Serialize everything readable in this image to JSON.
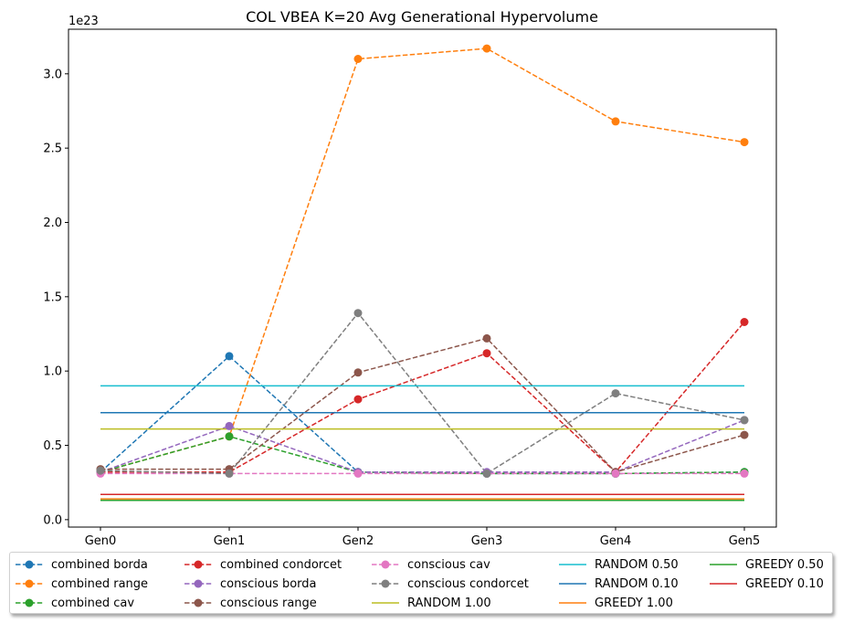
{
  "chart_data": {
    "type": "line",
    "title": "COL VBEA K=20 Avg Generational Hypervolume",
    "xlabel": "",
    "ylabel": "",
    "y_offset_label": "1e23",
    "categories": [
      "Gen0",
      "Gen1",
      "Gen2",
      "Gen3",
      "Gen4",
      "Gen5"
    ],
    "ylim": [
      -0.05,
      3.3
    ],
    "yticks": [
      0.0,
      0.5,
      1.0,
      1.5,
      2.0,
      2.5,
      3.0
    ],
    "ytick_labels": [
      "0.0",
      "0.5",
      "1.0",
      "1.5",
      "2.0",
      "2.5",
      "3.0"
    ],
    "legend_position": "below plot, 5 columns",
    "series": [
      {
        "name": "combined borda",
        "style": "dashed-marker",
        "color": "#1f77b4",
        "values": [
          0.32,
          1.1,
          0.32,
          0.31,
          0.31,
          0.32
        ]
      },
      {
        "name": "combined range",
        "style": "dashed-marker",
        "color": "#ff7f0e",
        "values": [
          0.32,
          0.56,
          3.1,
          3.17,
          2.68,
          2.54
        ]
      },
      {
        "name": "combined cav",
        "style": "dashed-marker",
        "color": "#2ca02c",
        "values": [
          0.32,
          0.56,
          0.32,
          0.31,
          0.31,
          0.32
        ]
      },
      {
        "name": "combined condorcet",
        "style": "dashed-marker",
        "color": "#d62728",
        "values": [
          0.32,
          0.32,
          0.81,
          1.12,
          0.32,
          1.33
        ]
      },
      {
        "name": "conscious borda",
        "style": "dashed-marker",
        "color": "#9467bd",
        "values": [
          0.32,
          0.63,
          0.32,
          0.32,
          0.32,
          0.67
        ]
      },
      {
        "name": "conscious range",
        "style": "dashed-marker",
        "color": "#8c564b",
        "values": [
          0.34,
          0.34,
          0.99,
          1.22,
          0.32,
          0.57
        ]
      },
      {
        "name": "conscious cav",
        "style": "dashed-marker",
        "color": "#e377c2",
        "values": [
          0.31,
          0.31,
          0.31,
          0.31,
          0.31,
          0.31
        ]
      },
      {
        "name": "conscious condorcet",
        "style": "dashed-marker",
        "color": "#7f7f7f",
        "values": [
          0.33,
          0.31,
          1.39,
          0.31,
          0.85,
          0.67
        ]
      },
      {
        "name": "RANDOM 1.00",
        "style": "solid",
        "color": "#bcbd22",
        "values": [
          0.61,
          0.61,
          0.61,
          0.61,
          0.61,
          0.61
        ]
      },
      {
        "name": "RANDOM 0.50",
        "style": "solid",
        "color": "#17becf",
        "values": [
          0.9,
          0.9,
          0.9,
          0.9,
          0.9,
          0.9
        ]
      },
      {
        "name": "RANDOM 0.10",
        "style": "solid",
        "color": "#1f77b4",
        "values": [
          0.72,
          0.72,
          0.72,
          0.72,
          0.72,
          0.72
        ]
      },
      {
        "name": "GREEDY 1.00",
        "style": "solid",
        "color": "#ff7f0e",
        "values": [
          0.14,
          0.14,
          0.14,
          0.14,
          0.14,
          0.14
        ]
      },
      {
        "name": "GREEDY 0.50",
        "style": "solid",
        "color": "#2ca02c",
        "values": [
          0.13,
          0.13,
          0.13,
          0.13,
          0.13,
          0.13
        ]
      },
      {
        "name": "GREEDY 0.10",
        "style": "solid",
        "color": "#d62728",
        "values": [
          0.17,
          0.17,
          0.17,
          0.17,
          0.17,
          0.17
        ]
      }
    ]
  }
}
